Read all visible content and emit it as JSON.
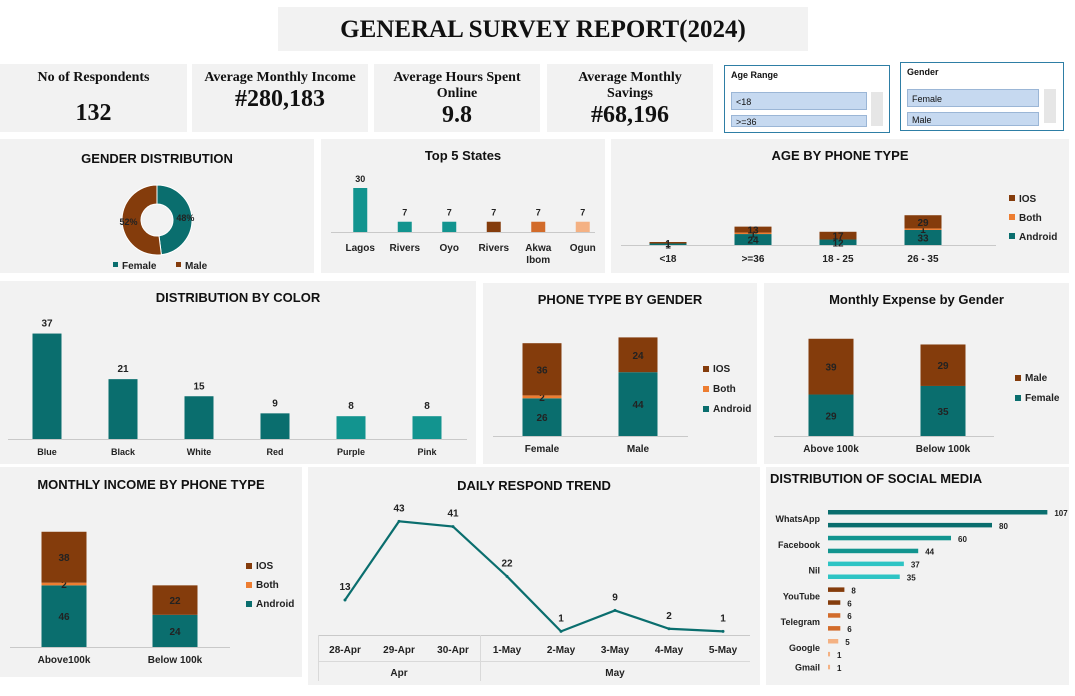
{
  "report": {
    "title": "GENERAL SURVEY REPORT(2024)"
  },
  "kpis": [
    {
      "label": "No of Respondents",
      "value": "132"
    },
    {
      "label": "Average Monthly Income",
      "value": "#280,183"
    },
    {
      "label": "Average Hours Spent Online",
      "value": "9.8"
    },
    {
      "label": "Average Monthly Savings",
      "value": "#68,196"
    }
  ],
  "slicers": {
    "age": {
      "title": "Age Range",
      "items": [
        "<18",
        ">=36"
      ]
    },
    "gender": {
      "title": "Gender",
      "items": [
        "Female",
        "Male"
      ]
    }
  },
  "colors": {
    "male": "#843c0c",
    "female": "#0a6e6e",
    "ios": "#843c0c",
    "both": "#ed7d31",
    "android": "#0a6e6e",
    "teal_dark": "#0a6e6e",
    "teal_mid": "#12948f",
    "teal_light": "#2ec4c4",
    "orange_dark": "#9c4a1a",
    "orange_mid": "#d26b2a",
    "orange_light": "#f4b183"
  },
  "chart_data": [
    {
      "id": "gender",
      "type": "pie",
      "title": "GENDER DISTRIBUTION",
      "categories": [
        "Female",
        "Male"
      ],
      "values": [
        48,
        52
      ],
      "data_labels": [
        "48%",
        "52%"
      ]
    },
    {
      "id": "states",
      "type": "bar",
      "title": "Top 5 States",
      "categories": [
        "Lagos",
        "Rivers",
        "Oyo",
        "Rivers",
        "Akwa Ibom",
        "Ogun"
      ],
      "values": [
        30,
        7,
        7,
        7,
        7,
        7
      ],
      "ylim": [
        0,
        32
      ]
    },
    {
      "id": "age_phone",
      "type": "bar",
      "title": "AGE BY PHONE TYPE",
      "stacked": true,
      "categories": [
        "<18",
        ">=36",
        "18 - 25",
        "26 - 35"
      ],
      "series": [
        {
          "name": "Android",
          "values": [
            1,
            24,
            12,
            33
          ]
        },
        {
          "name": "Both",
          "values": [
            0,
            1,
            0,
            1
          ]
        },
        {
          "name": "IOS",
          "values": [
            1,
            13,
            17,
            29
          ]
        }
      ],
      "ylim": [
        0,
        64
      ]
    },
    {
      "id": "color",
      "type": "bar",
      "title": "DISTRIBUTION BY COLOR",
      "categories": [
        "Blue",
        "Black",
        "White",
        "Red",
        "Purple",
        "Pink"
      ],
      "values": [
        37,
        21,
        15,
        9,
        8,
        8
      ],
      "ylim": [
        0,
        38
      ]
    },
    {
      "id": "phone_gender",
      "type": "bar",
      "title": "PHONE TYPE BY GENDER",
      "stacked": true,
      "categories": [
        "Female",
        "Male"
      ],
      "series": [
        {
          "name": "Android",
          "values": [
            26,
            44
          ]
        },
        {
          "name": "Both",
          "values": [
            2,
            0
          ]
        },
        {
          "name": "IOS",
          "values": [
            36,
            24
          ]
        }
      ],
      "ylim": [
        0,
        68
      ]
    },
    {
      "id": "expense_gender",
      "type": "bar",
      "title": "Monthly Expense by Gender",
      "stacked": true,
      "categories": [
        "Above 100k",
        "Below 100k"
      ],
      "series": [
        {
          "name": "Female",
          "values": [
            29,
            35
          ]
        },
        {
          "name": "Male",
          "values": [
            39,
            29
          ]
        }
      ],
      "ylim": [
        0,
        70
      ]
    },
    {
      "id": "income_phone",
      "type": "bar",
      "title": "MONTHLY INCOME BY PHONE TYPE",
      "stacked": true,
      "categories": [
        "Above100k",
        "Below 100k"
      ],
      "series": [
        {
          "name": "Android",
          "values": [
            46,
            24
          ]
        },
        {
          "name": "Both",
          "values": [
            2,
            0
          ]
        },
        {
          "name": "IOS",
          "values": [
            38,
            22
          ]
        }
      ],
      "ylim": [
        0,
        88
      ]
    },
    {
      "id": "trend",
      "type": "line",
      "title": "DAILY RESPOND TREND",
      "categories": [
        "28-Apr",
        "29-Apr",
        "30-Apr",
        "1-May",
        "2-May",
        "3-May",
        "4-May",
        "5-May"
      ],
      "groups": [
        {
          "label": "Apr",
          "count": 3
        },
        {
          "label": "May",
          "count": 5
        }
      ],
      "values": [
        13,
        43,
        41,
        22,
        1,
        9,
        2,
        1
      ],
      "ylim": [
        0,
        46
      ]
    },
    {
      "id": "social",
      "type": "bar",
      "orientation": "horizontal",
      "title": "DISTRIBUTION OF SOCIAL MEDIA",
      "categories": [
        "WhatsApp",
        "Facebook",
        "Nil",
        "YouTube",
        "Telegram",
        "Google",
        "Gmail"
      ],
      "bars": [
        {
          "category": "WhatsApp",
          "value": 107,
          "color": "#0a6e6e"
        },
        {
          "category": "WhatsApp",
          "value": 80,
          "color": "#0a6e6e"
        },
        {
          "category": "Facebook",
          "value": 60,
          "color": "#12948f"
        },
        {
          "category": "Facebook",
          "value": 44,
          "color": "#12948f"
        },
        {
          "category": "Nil",
          "value": 37,
          "color": "#2ec4c4"
        },
        {
          "category": "Nil",
          "value": 35,
          "color": "#2ec4c4"
        },
        {
          "category": "YouTube",
          "value": 8,
          "color": "#843c0c"
        },
        {
          "category": "YouTube",
          "value": 6,
          "color": "#843c0c"
        },
        {
          "category": "Telegram",
          "value": 6,
          "color": "#d26b2a"
        },
        {
          "category": "Telegram",
          "value": 6,
          "color": "#d26b2a"
        },
        {
          "category": "Google",
          "value": 5,
          "color": "#f4b183"
        },
        {
          "category": "Google",
          "value": 1,
          "color": "#f4b183"
        },
        {
          "category": "Gmail",
          "value": 1,
          "color": "#f4b183"
        }
      ],
      "xlim": [
        0,
        107
      ]
    }
  ]
}
